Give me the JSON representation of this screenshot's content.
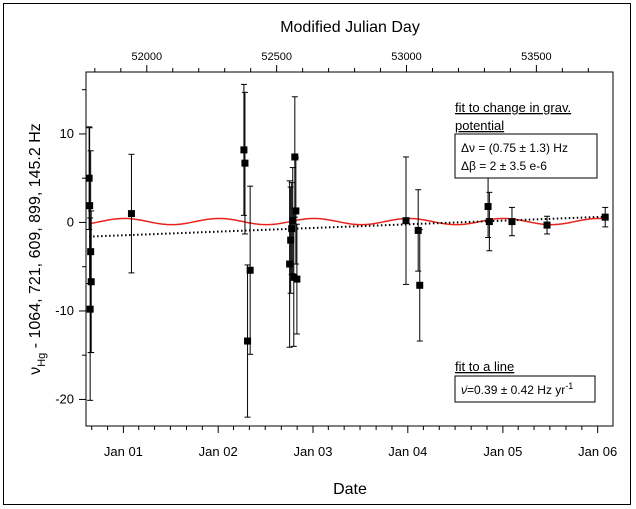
{
  "chart_data": {
    "type": "scatter",
    "title": "",
    "xlabel": "Date",
    "x2label": "Modified Julian Day",
    "ylabel": "νHg - 1064, 721, 609, 899,145.2 Hz",
    "ylabel_parts": {
      "nu": "ν",
      "sub": "Hg",
      "rest": " - 1064, 721, 609, 899, 145.2 Hz"
    },
    "xlim": [
      "2000-08-10",
      "2006-03-01"
    ],
    "ylim": [
      -23,
      17
    ],
    "x_ticks": [
      {
        "date": "2001-01-01",
        "label": "Jan 01"
      },
      {
        "date": "2002-01-01",
        "label": "Jan 02"
      },
      {
        "date": "2003-01-01",
        "label": "Jan 03"
      },
      {
        "date": "2004-01-01",
        "label": "Jan 04"
      },
      {
        "date": "2005-01-01",
        "label": "Jan 05"
      },
      {
        "date": "2006-01-01",
        "label": "Jan 06"
      }
    ],
    "x_minor_ticks": [
      "2000-09-01",
      "2000-11-01",
      "2001-03-01",
      "2001-05-01",
      "2001-07-01",
      "2001-09-01",
      "2001-11-01",
      "2002-03-01",
      "2002-05-01",
      "2002-07-01",
      "2002-09-01",
      "2002-11-01",
      "2003-03-01",
      "2003-05-01",
      "2003-07-01",
      "2003-09-01",
      "2003-11-01",
      "2004-03-01",
      "2004-05-01",
      "2004-07-01",
      "2004-09-01",
      "2004-11-01",
      "2005-03-01",
      "2005-05-01",
      "2005-07-01",
      "2005-09-01",
      "2005-11-01"
    ],
    "y_ticks": [
      -20,
      -10,
      0,
      10
    ],
    "y_tick_labels": [
      "-20",
      "-10",
      "0",
      "10"
    ],
    "mjd_ticks": [
      52000,
      52500,
      53000,
      53500
    ],
    "mjd_tick_labels": [
      "52000",
      "52500",
      "53000",
      "53500"
    ],
    "grid": false,
    "series": [
      {
        "kind": "points",
        "color": "#000000",
        "points": [
          {
            "date": "2000-08-22",
            "y": 5.0,
            "err": 5.8
          },
          {
            "date": "2000-08-24",
            "y": 1.9,
            "err": 8.8
          },
          {
            "date": "2000-08-26",
            "y": -9.8,
            "err": 10.3
          },
          {
            "date": "2000-08-28",
            "y": -3.3,
            "err": 11.4
          },
          {
            "date": "2000-08-30",
            "y": -6.7,
            "err": 8.0
          },
          {
            "date": "2001-02-01",
            "y": 1.0,
            "err": 6.7
          },
          {
            "date": "2002-04-10",
            "y": 8.2,
            "err": 7.4
          },
          {
            "date": "2002-04-14",
            "y": 6.7,
            "err": 8.0
          },
          {
            "date": "2002-04-24",
            "y": -13.4,
            "err": 8.6
          },
          {
            "date": "2002-05-04",
            "y": -5.4,
            "err": 9.5
          },
          {
            "date": "2002-10-03",
            "y": -4.7,
            "err": 9.4
          },
          {
            "date": "2002-10-07",
            "y": -2.0,
            "err": 6.0
          },
          {
            "date": "2002-10-11",
            "y": -0.7,
            "err": 5.2
          },
          {
            "date": "2002-10-15",
            "y": 0.2,
            "err": 6.0
          },
          {
            "date": "2002-10-19",
            "y": -6.2,
            "err": 7.8
          },
          {
            "date": "2002-10-23",
            "y": 7.4,
            "err": 6.8
          },
          {
            "date": "2002-10-27",
            "y": 1.3,
            "err": 6.0
          },
          {
            "date": "2002-10-31",
            "y": -6.4,
            "err": 6.2
          },
          {
            "date": "2003-12-25",
            "y": 0.2,
            "err": 7.2
          },
          {
            "date": "2004-02-10",
            "y": -0.9,
            "err": 4.6
          },
          {
            "date": "2004-02-16",
            "y": -7.1,
            "err": 6.3
          },
          {
            "date": "2004-11-05",
            "y": 1.8,
            "err": 3.5
          },
          {
            "date": "2004-11-10",
            "y": 0.1,
            "err": 3.3
          },
          {
            "date": "2005-02-05",
            "y": 0.1,
            "err": 1.6
          },
          {
            "date": "2005-06-20",
            "y": -0.3,
            "err": 1.0
          },
          {
            "date": "2006-01-30",
            "y": 0.6,
            "err": 1.1
          }
        ]
      },
      {
        "kind": "line",
        "name": "fit to change in grav. potential",
        "color": "#e8231c",
        "description": "annual oscillation",
        "offset": 0.1,
        "amplitude": 0.35,
        "period_days": 365.25,
        "phase_peak_date": "2001-01-04"
      },
      {
        "kind": "line",
        "name": "fit to a line",
        "color": "#000000",
        "style": "dotted",
        "y_start": -1.6,
        "y_end": 0.65
      }
    ],
    "annotations": {
      "grav_fit": {
        "title_line1": "fit to change in grav.",
        "title_line2": "potential",
        "delta_nu_symbol": "Δν",
        "delta_nu_text": " = (0.75 ± 1.3) Hz",
        "delta_beta_symbol": "Δβ",
        "delta_beta_text": " = 2 ± 3.5 e-6"
      },
      "line_fit": {
        "title": "fit to a line",
        "nu_dot_symbol": "ν̇",
        "value_text": "=0.39 ± 0.42 Hz yr",
        "exponent": "-1"
      }
    }
  }
}
